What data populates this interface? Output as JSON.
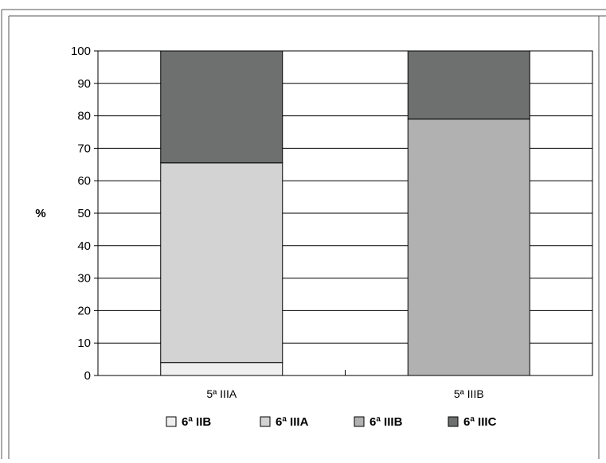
{
  "chart_data": {
    "type": "bar",
    "stacked": true,
    "categories": [
      "5ª IIIA",
      "5ª IIIB"
    ],
    "series": [
      {
        "name": "6ª IIB",
        "values": [
          4,
          0
        ],
        "color": "#efefef"
      },
      {
        "name": "6ª IIIA",
        "values": [
          61.5,
          0
        ],
        "color": "#d3d3d3"
      },
      {
        "name": "6ª IIIB",
        "values": [
          0,
          79
        ],
        "color": "#b1b1b1"
      },
      {
        "name": "6ª IIIC",
        "values": [
          34.5,
          21
        ],
        "color": "#6e706f"
      }
    ],
    "ylabel": "%",
    "ylim": [
      0,
      100
    ],
    "yticks": [
      "0",
      "10",
      "20",
      "30",
      "40",
      "50",
      "60",
      "70",
      "80",
      "90",
      "100"
    ],
    "grid": true,
    "legend_position": "bottom"
  }
}
